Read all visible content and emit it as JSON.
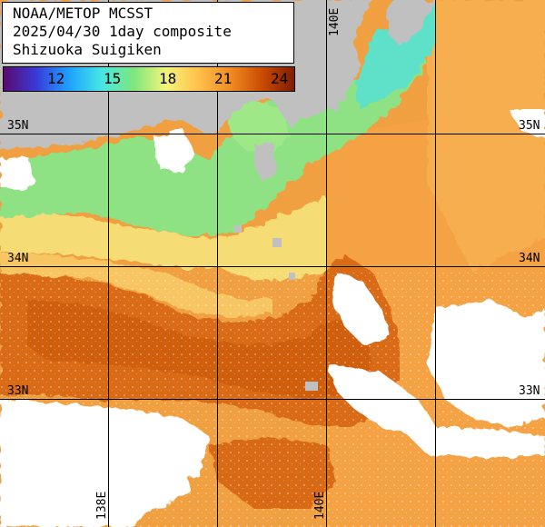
{
  "title": {
    "line1": "NOAA/METOP MCSST",
    "line2": "2025/04/30 1day composite",
    "line3": "Shizuoka Suigiken"
  },
  "colorbar": {
    "ticks": [
      "12",
      "15",
      "18",
      "21",
      "24"
    ],
    "colors": [
      "#5a0a6e",
      "#3a3ad8",
      "#1ea0ff",
      "#46e6e6",
      "#7ee67e",
      "#f4f47a",
      "#ffc04a",
      "#f08a22",
      "#c84800",
      "#7a1a00"
    ]
  },
  "grid": {
    "lat_labels": [
      "35N",
      "34N",
      "33N"
    ],
    "lon_labels": [
      "140E",
      "138E",
      "140E"
    ]
  },
  "palette": {
    "land": "#c0c0c0",
    "cloud": "#ffffff",
    "gridline": "#000000",
    "sst_warm": "#e07a1a",
    "sst_mid": "#f5b84a",
    "sst_cool": "#9be67a",
    "sst_cold": "#50d8c8"
  }
}
